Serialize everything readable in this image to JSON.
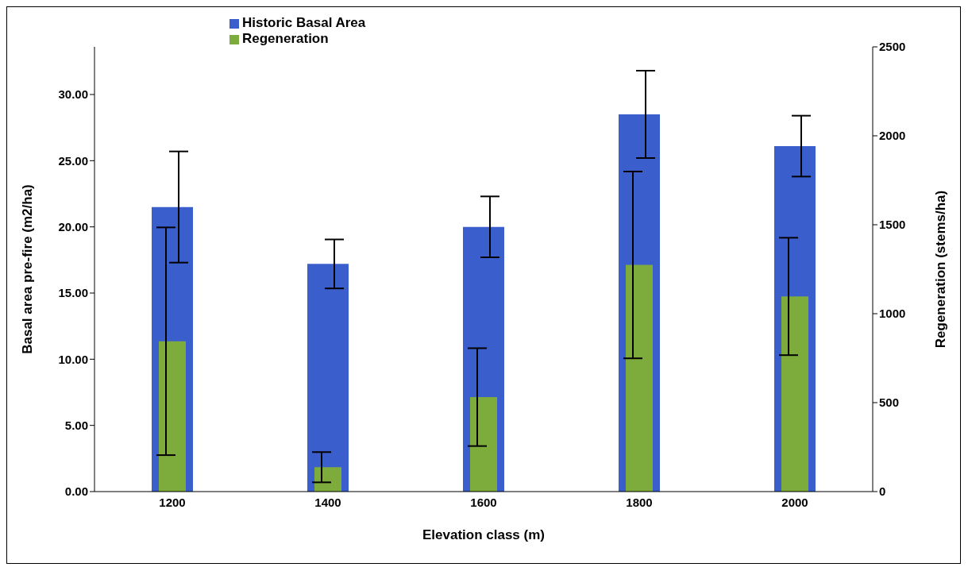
{
  "chart_data": {
    "type": "bar",
    "xlabel": "Elevation class (m)",
    "ylabel": "Basal area pre-fire (m2/ha)",
    "y2label": "Regeneration (stems/ha)",
    "categories": [
      "1200",
      "1400",
      "1600",
      "1800",
      "2000"
    ],
    "series": [
      {
        "name": "Historic Basal Area",
        "color": "#3a5fcd",
        "values": [
          21.5,
          17.2,
          20.0,
          28.5,
          26.1
        ],
        "errors": [
          4.2,
          1.85,
          2.3,
          3.3,
          2.3
        ]
      },
      {
        "name": "Regeneration",
        "color": "#7dab3c",
        "axis": "y2",
        "values": [
          845,
          137,
          531,
          1274,
          1097
        ],
        "errors": [
          640,
          85,
          275,
          525,
          330
        ]
      }
    ],
    "ylim": [
      0,
      33.6
    ],
    "yticks": [
      {
        "value": 0,
        "label": "0.00"
      },
      {
        "value": 5,
        "label": "5.00"
      },
      {
        "value": 10,
        "label": "10.00"
      },
      {
        "value": 15,
        "label": "15.00"
      },
      {
        "value": 20,
        "label": "20.00"
      },
      {
        "value": 25,
        "label": "25.00"
      },
      {
        "value": 30,
        "label": "30.00"
      }
    ],
    "y2lim": [
      0,
      2500
    ],
    "y2ticks": [
      0,
      500,
      1000,
      1500,
      2000,
      2500
    ],
    "grid": false,
    "legend": "top left"
  }
}
